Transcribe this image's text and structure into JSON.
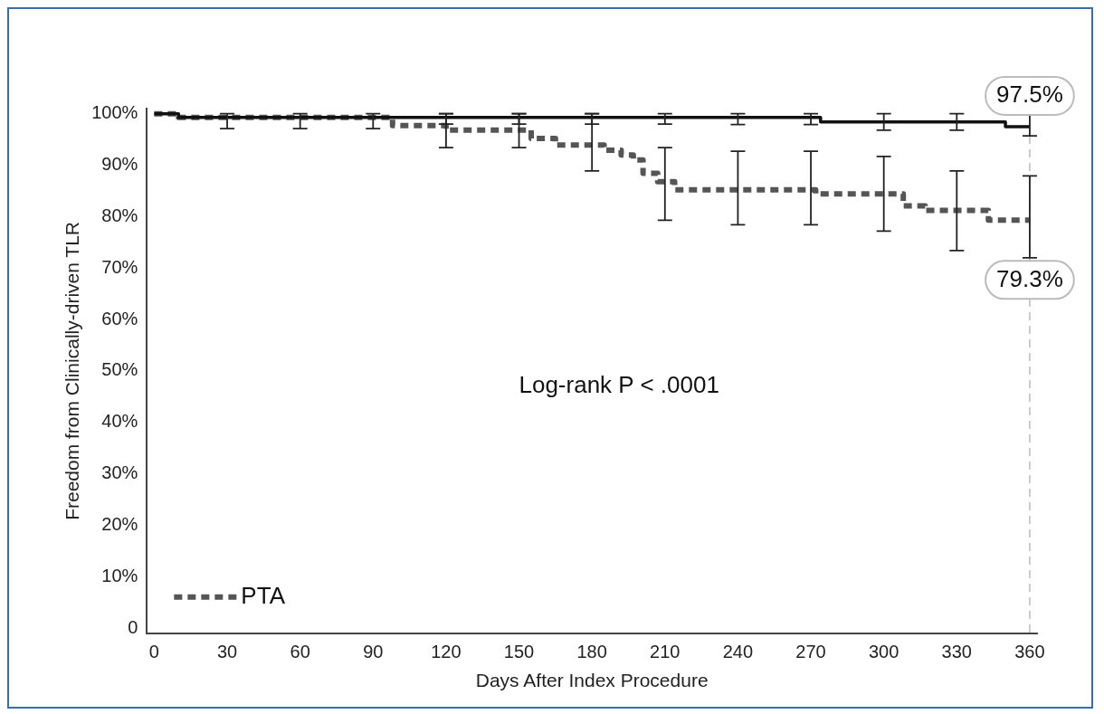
{
  "chart_data": {
    "type": "step",
    "xlabel": "Days After Index Procedure",
    "ylabel": "Freedom from Clinically-driven TLR",
    "xlim": [
      -3,
      363
    ],
    "xticks": [
      0,
      30,
      60,
      90,
      120,
      150,
      180,
      210,
      240,
      270,
      300,
      330,
      360
    ],
    "ylim": [
      -1,
      101
    ],
    "yticks": [
      {
        "value": 0,
        "label": "0"
      },
      {
        "value": 10,
        "label": "10%"
      },
      {
        "value": 20,
        "label": "20%"
      },
      {
        "value": 30,
        "label": "30%"
      },
      {
        "value": 40,
        "label": "40%"
      },
      {
        "value": 50,
        "label": "50%"
      },
      {
        "value": 60,
        "label": "60%"
      },
      {
        "value": 70,
        "label": "70%"
      },
      {
        "value": 80,
        "label": "80%"
      },
      {
        "value": 90,
        "label": "90%"
      },
      {
        "value": 100,
        "label": "100%"
      }
    ],
    "grid": false,
    "legend": "bottom left",
    "marker": "none",
    "series": [
      {
        "color": "#111111",
        "line_style": "solid",
        "x": [
          0,
          10,
          30,
          60,
          90,
          120,
          150,
          180,
          210,
          240,
          270,
          274,
          300,
          330,
          350,
          360
        ],
        "values": [
          100,
          99.3,
          99.3,
          99.3,
          99.3,
          99.3,
          99.3,
          99.3,
          99.3,
          99.3,
          99.3,
          98.4,
          98.4,
          98.4,
          97.5,
          97.5
        ],
        "errors": [
          null,
          null,
          [
            97.1,
            100
          ],
          [
            97.1,
            100
          ],
          [
            97.1,
            100
          ],
          [
            98,
            100
          ],
          [
            98,
            100
          ],
          [
            98,
            100
          ],
          [
            98,
            100
          ],
          [
            97.9,
            100
          ],
          [
            97.9,
            100
          ],
          null,
          [
            96.8,
            100
          ],
          [
            96.8,
            100
          ],
          null,
          [
            95.7,
            100
          ]
        ]
      },
      {
        "name": "PTA",
        "color": "#555555",
        "line_style": "dashed",
        "x": [
          0,
          10,
          98,
          120,
          150,
          155,
          165,
          180,
          185,
          192,
          197,
          201,
          207,
          210,
          214,
          240,
          270,
          272,
          300,
          308,
          317,
          330,
          343,
          360
        ],
        "values": [
          100,
          99.3,
          97.7,
          96.8,
          96.8,
          95.2,
          93.9,
          93.9,
          92.9,
          92,
          91,
          88.4,
          86.8,
          86.8,
          85.2,
          85.2,
          85.2,
          84.4,
          84.4,
          82.1,
          81.2,
          81.2,
          79.3,
          79.3
        ],
        "errors": [
          null,
          null,
          null,
          [
            93.4,
            100
          ],
          [
            93.4,
            100
          ],
          null,
          null,
          [
            88.9,
            100
          ],
          null,
          null,
          null,
          null,
          null,
          [
            79.3,
            93.4
          ],
          null,
          [
            78.4,
            92.7
          ],
          [
            78.4,
            92.7
          ],
          null,
          [
            77.2,
            91.7
          ],
          null,
          null,
          [
            73.4,
            88.9
          ],
          null,
          [
            72,
            87.9
          ]
        ]
      }
    ],
    "ref_lines": [
      {
        "axis": "x",
        "value": 360,
        "color": "#bbbbbb",
        "line_style": "dashed"
      }
    ],
    "annotations": [
      {
        "text": "97.5%",
        "x": 360,
        "y": 97.5
      },
      {
        "text": "79.3%",
        "x": 360,
        "y": 79.3
      },
      "Log-rank P < .0001"
    ]
  }
}
